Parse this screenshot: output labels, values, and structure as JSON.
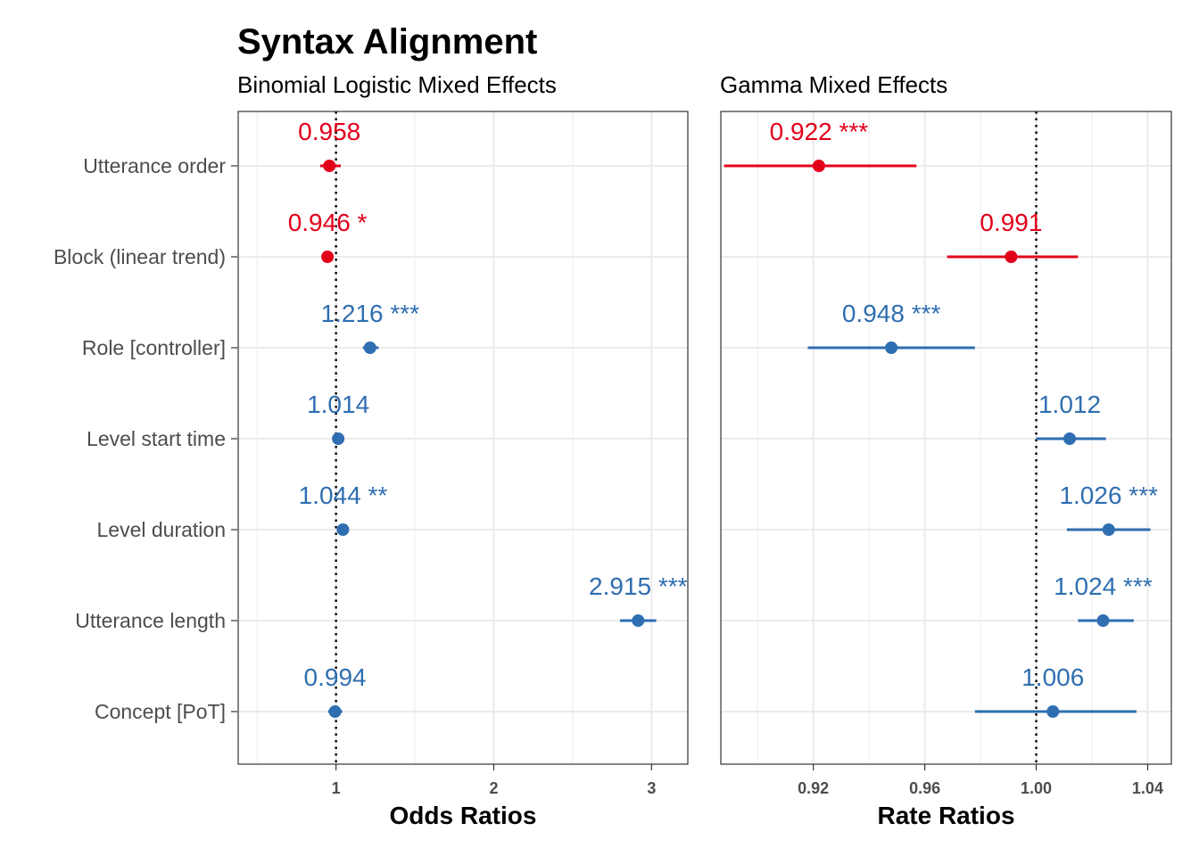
{
  "title": "Syntax Alignment",
  "colors": {
    "negative": "#e3001b",
    "positive": "#2f6eb0",
    "grid": "#ebebeb",
    "border": "#333333"
  },
  "chart_data": [
    {
      "type": "forest",
      "subtitle": "Binomial Logistic Mixed Effects",
      "xlabel": "Odds Ratios",
      "xlim": [
        0.38,
        3.23
      ],
      "xticks": [
        1,
        2,
        3
      ],
      "xtick_labels": [
        "1",
        "2",
        "3"
      ],
      "reference_line": 1,
      "grid": true,
      "categories": [
        "Utterance order",
        "Block (linear trend)",
        "Role [controller]",
        "Level start time",
        "Level duration",
        "Utterance length",
        "Concept [PoT]"
      ],
      "estimates": [
        0.958,
        0.946,
        1.216,
        1.014,
        1.044,
        2.915,
        0.994
      ],
      "ci_low": [
        0.9,
        0.91,
        1.17,
        0.99,
        1.02,
        2.8,
        0.95
      ],
      "ci_high": [
        1.03,
        0.985,
        1.27,
        1.04,
        1.07,
        3.03,
        1.04
      ],
      "labels": [
        "0.958",
        "0.946 *",
        "1.216 ***",
        "1.014",
        "1.044 **",
        "2.915 ***",
        "0.994"
      ],
      "direction": [
        "negative",
        "negative",
        "positive",
        "positive",
        "positive",
        "positive",
        "positive"
      ]
    },
    {
      "type": "forest",
      "subtitle": "Gamma Mixed Effects",
      "xlabel": "Rate Ratios",
      "xlim": [
        0.8868,
        1.0485
      ],
      "xticks": [
        0.92,
        0.96,
        1.0,
        1.04
      ],
      "xtick_labels": [
        "0.92",
        "0.96",
        "1.00",
        "1.04"
      ],
      "reference_line": 1,
      "grid": true,
      "categories": [
        "Utterance order",
        "Block (linear trend)",
        "Role [controller]",
        "Level start time",
        "Level duration",
        "Utterance length",
        "Concept [PoT]"
      ],
      "estimates": [
        0.922,
        0.991,
        0.948,
        1.012,
        1.026,
        1.024,
        1.006
      ],
      "ci_low": [
        0.888,
        0.968,
        0.918,
        1.0,
        1.011,
        1.015,
        0.978
      ],
      "ci_high": [
        0.957,
        1.015,
        0.978,
        1.025,
        1.041,
        1.035,
        1.036
      ],
      "labels": [
        "0.922 ***",
        "0.991",
        "0.948 ***",
        "1.012",
        "1.026 ***",
        "1.024 ***",
        "1.006"
      ],
      "direction": [
        "negative",
        "negative",
        "positive",
        "positive",
        "positive",
        "positive",
        "positive"
      ]
    }
  ]
}
